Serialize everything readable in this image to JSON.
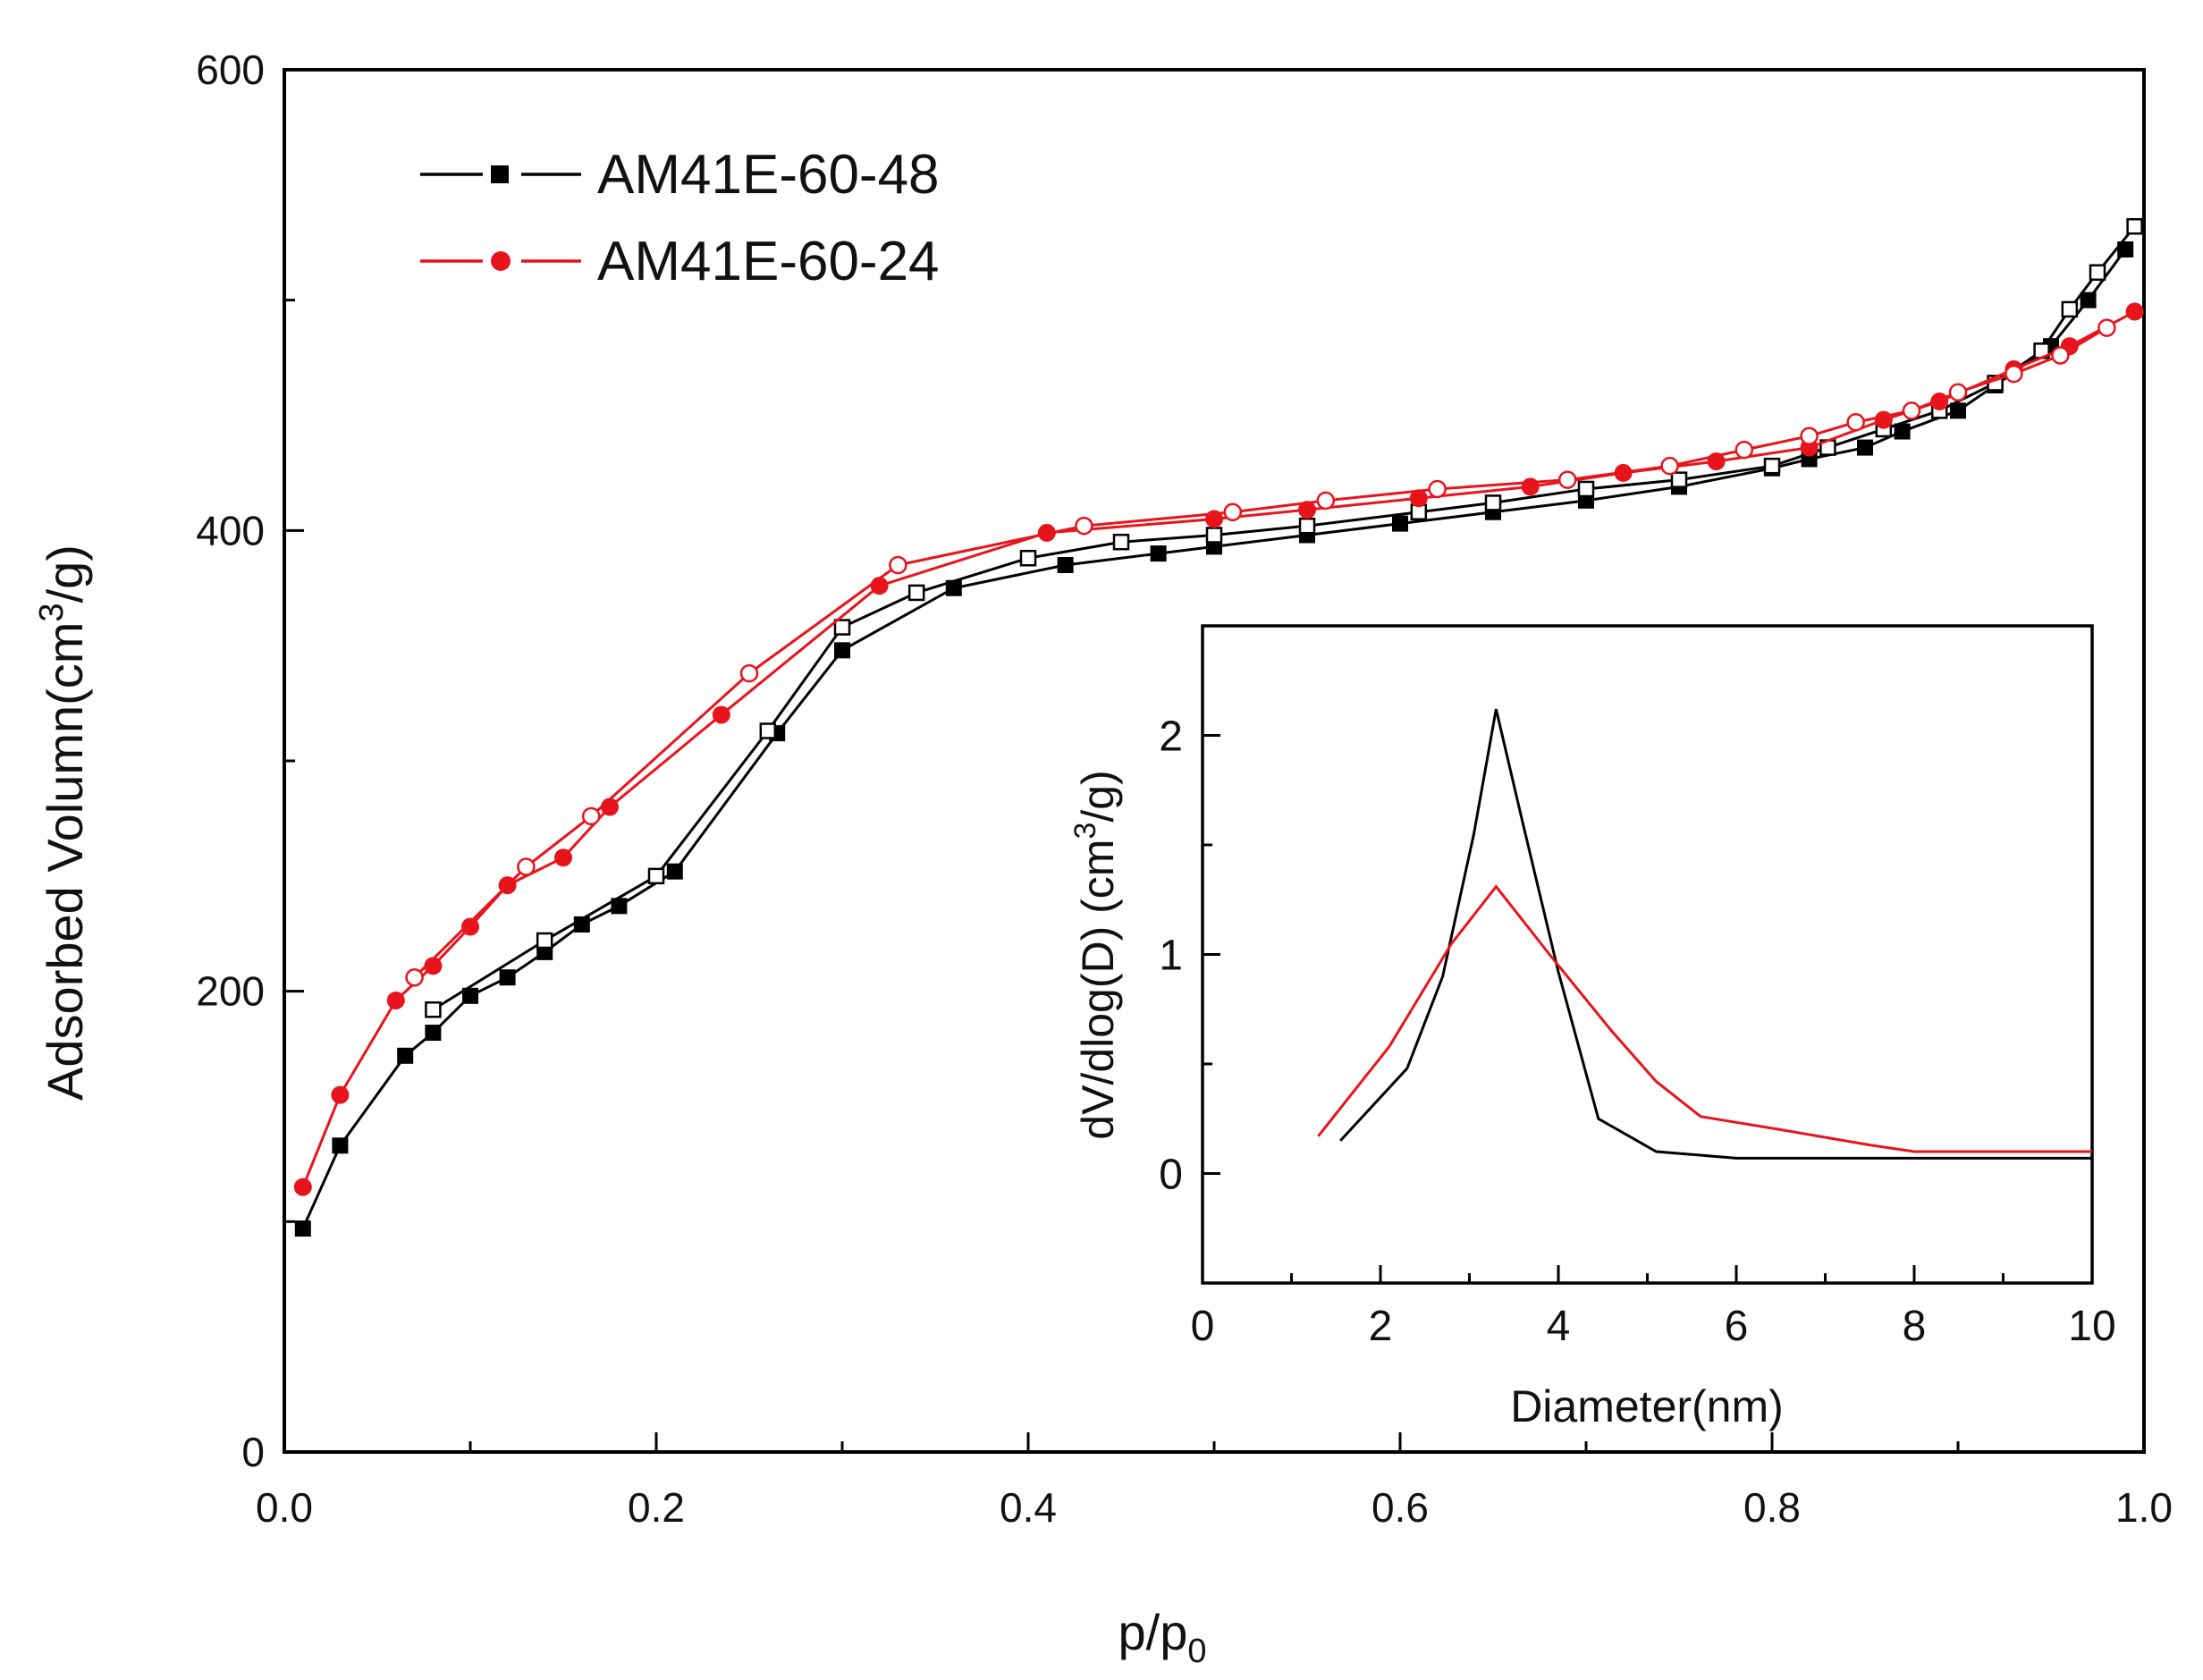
{
  "chart_data": [
    {
      "type": "line",
      "id": "main",
      "xlabel": "p/p",
      "xlabel_sub": "0",
      "ylabel": "Adsorbed Volumn(cm",
      "ylabel_sup": "3",
      "ylabel_tail": "/g)",
      "xlim": [
        0,
        1.0
      ],
      "ylim": [
        0,
        600
      ],
      "xticks": [
        "0.0",
        "0.2",
        "0.4",
        "0.6",
        "0.8",
        "1.0"
      ],
      "yticks": [
        "0",
        "200",
        "400",
        "600"
      ],
      "legend_position": "top-left",
      "series": [
        {
          "name": "AM41E-60-48",
          "color": "#000000",
          "marker": "square",
          "branch": "adsorption",
          "x": [
            0.01,
            0.03,
            0.065,
            0.08,
            0.1,
            0.12,
            0.14,
            0.16,
            0.18,
            0.21,
            0.265,
            0.3,
            0.36,
            0.42,
            0.47,
            0.5,
            0.55,
            0.6,
            0.65,
            0.7,
            0.75,
            0.8,
            0.82,
            0.85,
            0.87,
            0.9,
            0.92,
            0.95,
            0.97,
            0.99
          ],
          "y": [
            97,
            133,
            172,
            182,
            198,
            206,
            217,
            229,
            237,
            252,
            312,
            348,
            375,
            385,
            390,
            393,
            398,
            403,
            408,
            413,
            419,
            427,
            431,
            436,
            443,
            452,
            463,
            480,
            500,
            522
          ]
        },
        {
          "name": "AM41E-60-48",
          "color": "#000000",
          "marker": "square-open",
          "branch": "desorption",
          "x": [
            0.08,
            0.14,
            0.2,
            0.26,
            0.3,
            0.34,
            0.4,
            0.45,
            0.5,
            0.55,
            0.61,
            0.65,
            0.7,
            0.75,
            0.8,
            0.83,
            0.86,
            0.89,
            0.92,
            0.945,
            0.96,
            0.975,
            0.995
          ],
          "y": [
            192,
            222,
            250,
            313,
            358,
            373,
            388,
            395,
            398,
            402,
            408,
            412,
            418,
            422,
            428,
            436,
            444,
            452,
            464,
            478,
            496,
            512,
            532
          ]
        },
        {
          "name": "AM41E-60-24",
          "color": "#e8141c",
          "marker": "circle",
          "branch": "adsorption",
          "x": [
            0.01,
            0.03,
            0.06,
            0.08,
            0.1,
            0.12,
            0.15,
            0.175,
            0.235,
            0.32,
            0.41,
            0.5,
            0.55,
            0.61,
            0.67,
            0.72,
            0.77,
            0.82,
            0.86,
            0.89,
            0.93,
            0.96,
            0.995
          ],
          "y": [
            115,
            155,
            196,
            211,
            228,
            246,
            258,
            280,
            320,
            376,
            399,
            405,
            409,
            414,
            419,
            425,
            430,
            436,
            448,
            456,
            470,
            480,
            495
          ]
        },
        {
          "name": "AM41E-60-24",
          "color": "#e8141c",
          "marker": "circle-open",
          "branch": "desorption",
          "x": [
            0.07,
            0.13,
            0.165,
            0.25,
            0.33,
            0.43,
            0.51,
            0.56,
            0.62,
            0.69,
            0.745,
            0.785,
            0.82,
            0.845,
            0.875,
            0.9,
            0.93,
            0.955,
            0.98
          ],
          "y": [
            206,
            254,
            276,
            338,
            385,
            402,
            408,
            413,
            418,
            422,
            428,
            435,
            441,
            447,
            452,
            460,
            468,
            476,
            488
          ]
        }
      ]
    },
    {
      "type": "line",
      "id": "inset",
      "xlabel": "Diameter(nm)",
      "ylabel": "dV/dlog(D) (cm",
      "ylabel_sup": "3",
      "ylabel_tail": "/g)",
      "xlim": [
        0,
        10
      ],
      "ylim": [
        -0.5,
        2.5
      ],
      "xticks": [
        "0",
        "2",
        "4",
        "6",
        "8",
        "10"
      ],
      "yticks": [
        "0",
        "1",
        "2"
      ],
      "series": [
        {
          "name": "AM41E-60-48",
          "color": "#000000",
          "x": [
            1.55,
            2.3,
            2.7,
            3.05,
            3.3,
            3.6,
            4.0,
            4.45,
            5.1,
            6.0,
            8.0,
            10.0
          ],
          "y": [
            0.15,
            0.48,
            0.9,
            1.55,
            2.12,
            1.6,
            0.92,
            0.25,
            0.1,
            0.07,
            0.07,
            0.07
          ]
        },
        {
          "name": "AM41E-60-24",
          "color": "#e8141c",
          "x": [
            1.3,
            2.1,
            2.8,
            3.3,
            3.9,
            4.6,
            5.1,
            5.6,
            6.5,
            7.5,
            8.0,
            10.0
          ],
          "y": [
            0.17,
            0.58,
            1.05,
            1.31,
            1.0,
            0.65,
            0.42,
            0.26,
            0.2,
            0.13,
            0.1,
            0.1
          ]
        }
      ]
    }
  ]
}
